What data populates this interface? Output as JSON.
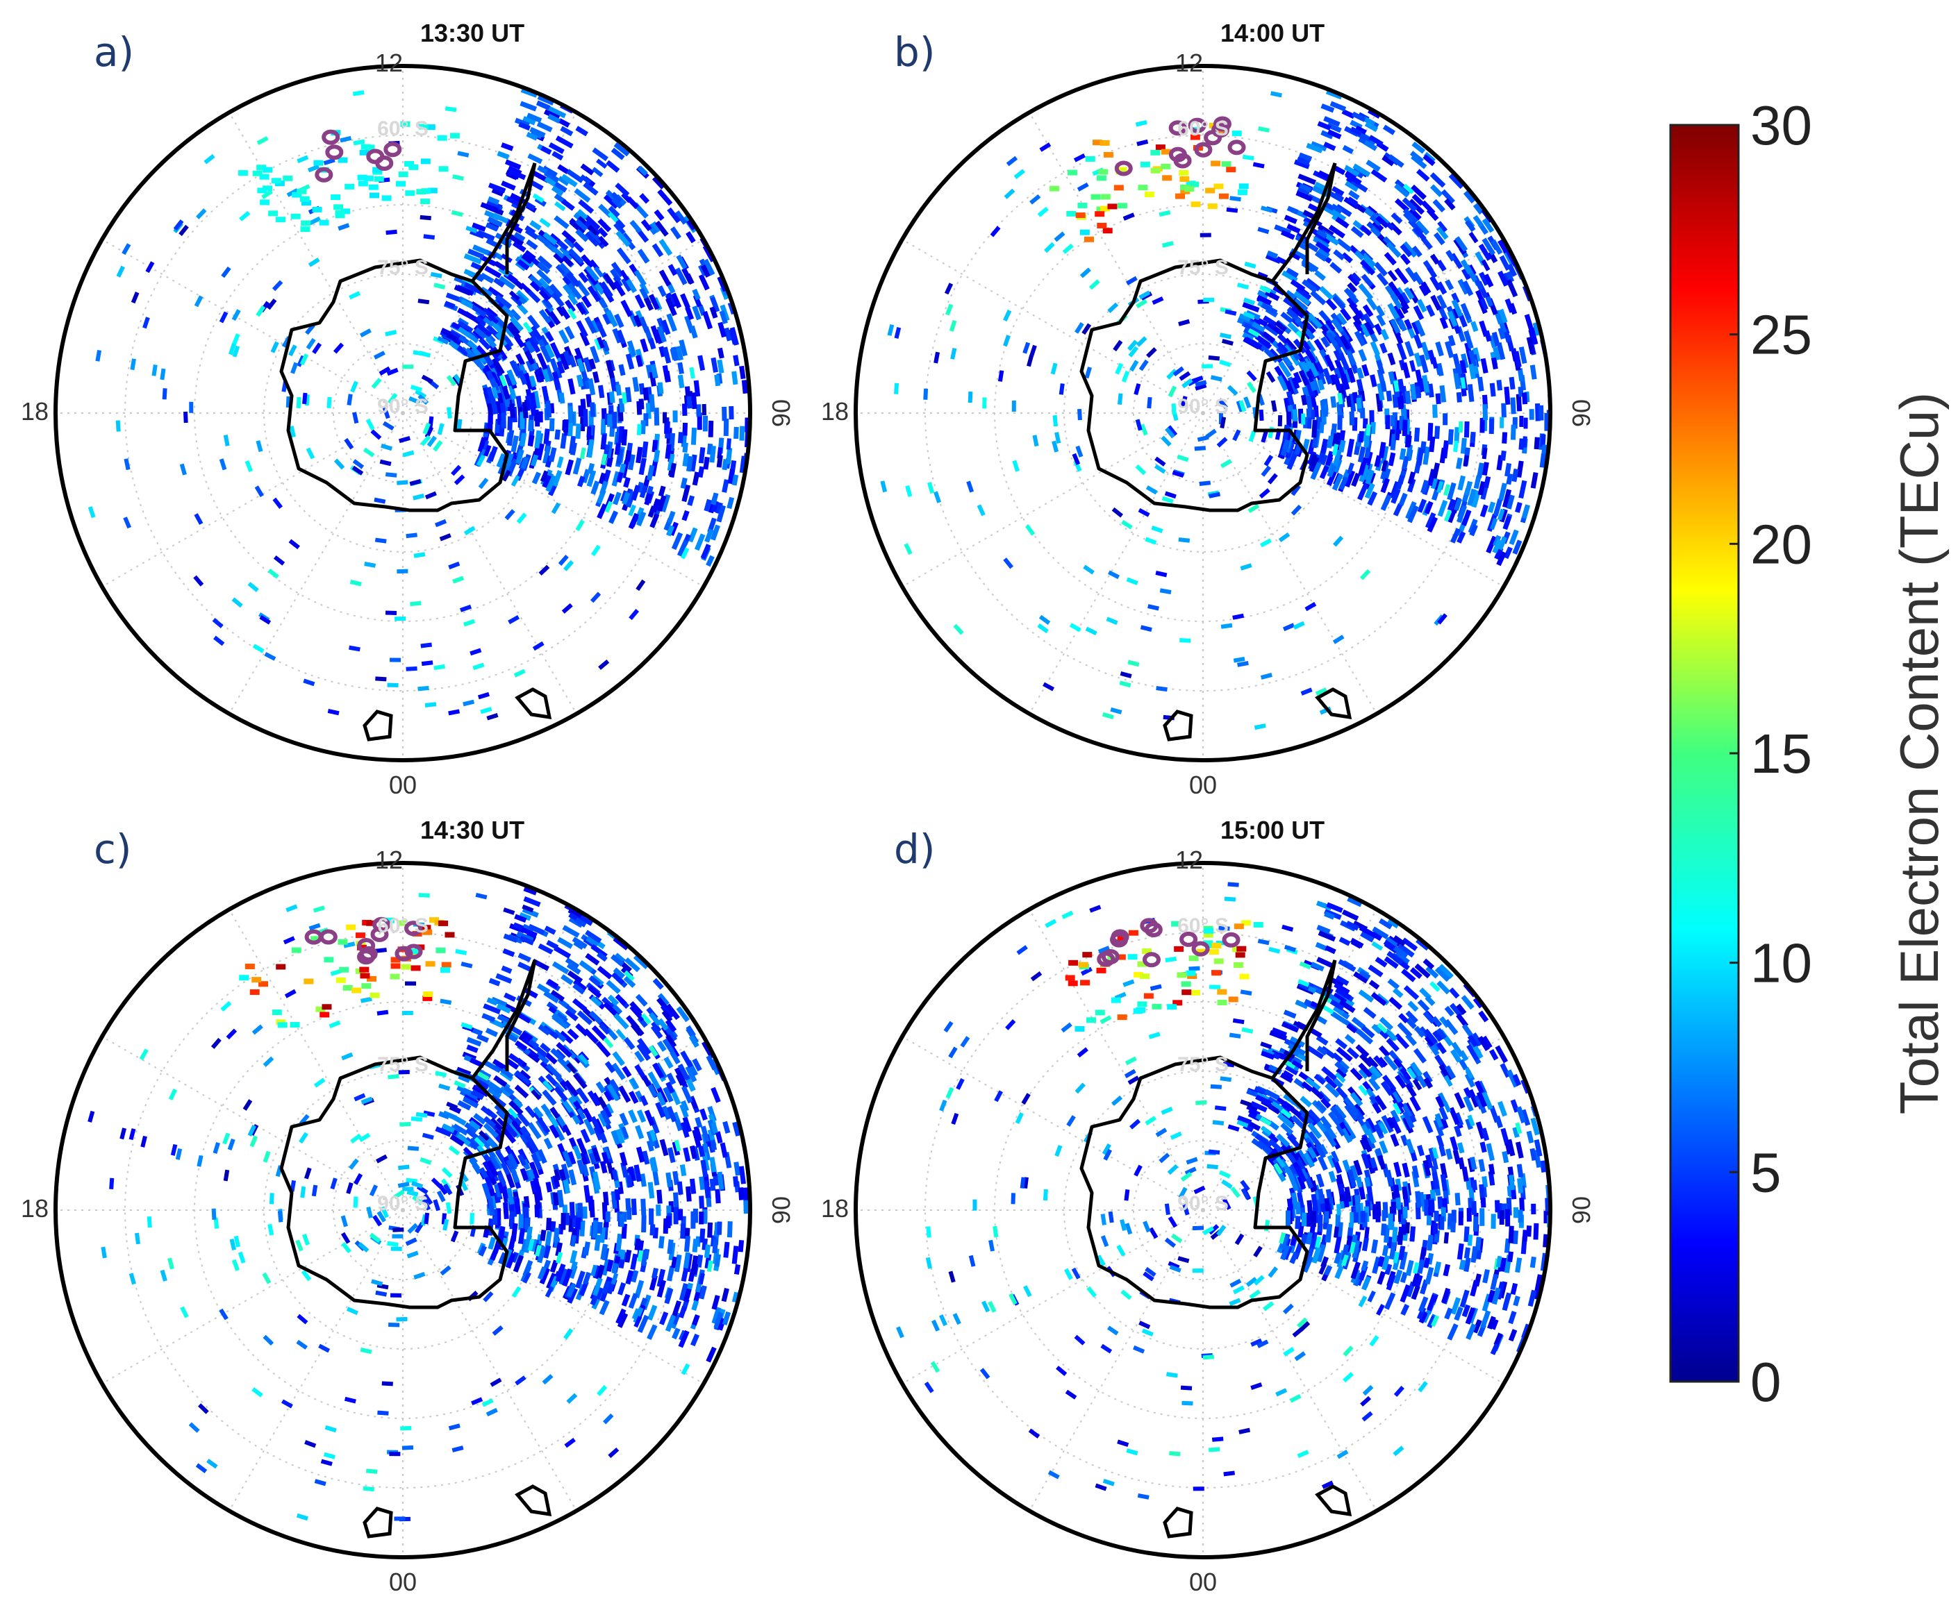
{
  "chart_data": {
    "type": "polar-map",
    "title": "",
    "colorbar": {
      "label": "Total Electron Content (TECu)",
      "min": 0,
      "max": 30,
      "ticks": [
        "0",
        "5",
        "10",
        "15",
        "20",
        "25",
        "30"
      ],
      "colormap": "jet"
    },
    "panels": [
      {
        "letter": "a)",
        "time": "13:30 UT",
        "mlt_labels": {
          "top": "12",
          "left": "18",
          "right": "06",
          "bottom": "00"
        },
        "lat_labels": [
          "60° S",
          "75° S",
          "90° S"
        ],
        "max_tec_near_noon": 12,
        "patch_present": false
      },
      {
        "letter": "b)",
        "time": "14:00 UT",
        "mlt_labels": {
          "top": "12",
          "left": "18",
          "right": "06",
          "bottom": "00"
        },
        "lat_labels": [
          "60° S",
          "75° S",
          "90° S"
        ],
        "max_tec_near_noon": 28,
        "patch_present": true
      },
      {
        "letter": "c)",
        "time": "14:30 UT",
        "mlt_labels": {
          "top": "12",
          "left": "18",
          "right": "06",
          "bottom": "00"
        },
        "lat_labels": [
          "60° S",
          "75° S",
          "90° S"
        ],
        "max_tec_near_noon": 29,
        "patch_present": true
      },
      {
        "letter": "d)",
        "time": "15:00 UT",
        "mlt_labels": {
          "top": "12",
          "left": "18",
          "right": "06",
          "bottom": "00"
        },
        "lat_labels": [
          "60° S",
          "75° S",
          "90° S"
        ],
        "max_tec_near_noon": 29,
        "patch_present": true
      }
    ]
  },
  "colors": {
    "frame": "#000000",
    "grid": "#c8c8c8",
    "coastline": "#000000",
    "marker": "#8a3f86",
    "panel_letter": "#1f3a6e"
  }
}
